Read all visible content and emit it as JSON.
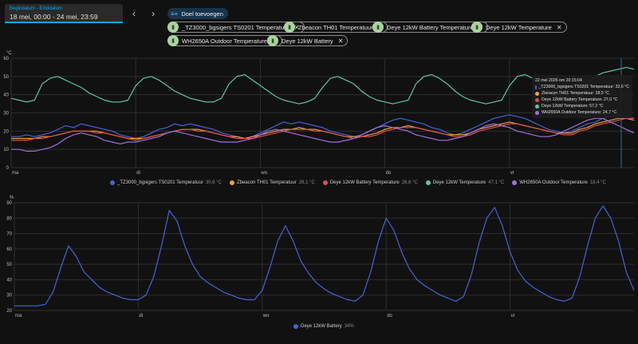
{
  "date_picker": {
    "label": "Begindatum - Einddatum",
    "value": "18 mei, 00:00 - 24 mei, 23:59"
  },
  "nav": {
    "prev_icon": "‹",
    "next_icon": "›"
  },
  "add_target": {
    "label": "Doel toevoegen"
  },
  "targets": [
    {
      "label": "_TZ3000_bgsigers TS0201 Temperatuur"
    },
    {
      "label": "Zbeacon TH01 Temperatuur"
    },
    {
      "label": "Deye 12kW Battery Temperature"
    },
    {
      "label": "Deye 12kW Temperature"
    },
    {
      "label": "WH2650A Outdoor Temperature"
    },
    {
      "label": "Deye 12kW Battery"
    }
  ],
  "chart_data": [
    {
      "type": "line",
      "unit": "°C",
      "ylim": [
        0,
        60
      ],
      "yticks": [
        "0",
        "10",
        "20",
        "30",
        "40",
        "50",
        "60"
      ],
      "xticks": [
        "ma",
        "di",
        "wo",
        "do",
        "vr"
      ],
      "grid": true,
      "legend_position": "bottom",
      "series": [
        {
          "name": "_TZ3000_bgsigers TS0201 Temperatuur",
          "value_label": "30,6 °C",
          "color": "#4a62d6",
          "values": [
            17,
            17,
            18,
            17,
            18,
            19,
            21,
            23,
            22,
            24,
            23,
            22,
            21,
            20,
            18,
            17,
            16,
            17,
            19,
            21,
            22,
            24,
            23,
            24,
            23,
            22,
            21,
            19,
            18,
            17,
            16,
            17,
            19,
            21,
            23,
            25,
            24,
            25,
            24,
            23,
            22,
            20,
            19,
            18,
            17,
            18,
            20,
            22,
            24,
            26,
            27,
            26,
            25,
            24,
            22,
            21,
            19,
            18,
            19,
            21,
            23,
            25,
            27,
            28,
            29,
            28,
            27,
            25,
            23,
            21,
            20,
            19,
            20,
            22,
            24,
            25,
            27,
            28,
            29,
            28,
            27
          ]
        },
        {
          "name": "Zbeacon TH01 Temperatuur",
          "value_label": "26,1 °C",
          "color": "#f0a040",
          "values": [
            16,
            16,
            16,
            16,
            17,
            17,
            18,
            19,
            20,
            20,
            20,
            20,
            19,
            18,
            17,
            16,
            16,
            16,
            17,
            18,
            19,
            20,
            21,
            21,
            21,
            20,
            19,
            18,
            17,
            17,
            16,
            17,
            18,
            19,
            20,
            21,
            21,
            22,
            21,
            21,
            20,
            19,
            18,
            17,
            17,
            17,
            18,
            19,
            21,
            22,
            22,
            23,
            22,
            21,
            20,
            19,
            18,
            18,
            18,
            19,
            21,
            22,
            23,
            24,
            25,
            24,
            23,
            22,
            21,
            20,
            19,
            19,
            19,
            21,
            22,
            24,
            25,
            26,
            27,
            27,
            26
          ]
        },
        {
          "name": "Deye 12kW Battery Temperature",
          "value_label": "26,6 °C",
          "color": "#e05050",
          "values": [
            15,
            15,
            15,
            16,
            16,
            17,
            18,
            19,
            20,
            20,
            20,
            19,
            19,
            18,
            17,
            16,
            15,
            16,
            17,
            18,
            19,
            20,
            21,
            21,
            20,
            20,
            19,
            18,
            17,
            16,
            16,
            16,
            17,
            18,
            19,
            20,
            21,
            21,
            21,
            20,
            20,
            19,
            18,
            17,
            16,
            17,
            17,
            18,
            20,
            21,
            22,
            22,
            22,
            21,
            20,
            19,
            18,
            17,
            17,
            18,
            20,
            21,
            22,
            23,
            24,
            24,
            23,
            22,
            21,
            20,
            19,
            18,
            18,
            20,
            21,
            23,
            24,
            25,
            26,
            27,
            27
          ]
        },
        {
          "name": "Deye 12kW Temperature",
          "value_label": "47,1 °C",
          "color": "#5cc7a8",
          "values": [
            38,
            37,
            36,
            37,
            46,
            49,
            50,
            48,
            46,
            44,
            41,
            39,
            37,
            36,
            36,
            37,
            45,
            49,
            50,
            48,
            45,
            42,
            40,
            38,
            37,
            36,
            36,
            38,
            46,
            50,
            51,
            48,
            45,
            42,
            39,
            37,
            36,
            35,
            36,
            38,
            44,
            49,
            50,
            48,
            46,
            42,
            39,
            37,
            36,
            35,
            36,
            37,
            46,
            50,
            51,
            49,
            46,
            42,
            39,
            37,
            36,
            35,
            36,
            37,
            45,
            50,
            51,
            49,
            45,
            42,
            39,
            37,
            36,
            36,
            46,
            50,
            52,
            53,
            54,
            55,
            54
          ]
        },
        {
          "name": "WH2650A Outdoor Temperature",
          "value_label": "18,4 °C",
          "color": "#a070e0",
          "values": [
            10,
            10,
            9,
            9,
            10,
            11,
            13,
            16,
            18,
            19,
            18,
            17,
            15,
            14,
            13,
            14,
            14,
            15,
            16,
            17,
            19,
            20,
            19,
            18,
            17,
            16,
            15,
            14,
            14,
            14,
            15,
            16,
            18,
            20,
            21,
            20,
            19,
            18,
            17,
            16,
            15,
            14,
            14,
            15,
            16,
            18,
            20,
            22,
            23,
            22,
            21,
            20,
            18,
            17,
            16,
            15,
            15,
            16,
            17,
            19,
            21,
            23,
            24,
            23,
            22,
            20,
            19,
            18,
            17,
            17,
            18,
            20,
            22,
            24,
            26,
            27,
            27,
            25,
            23,
            21,
            19
          ]
        }
      ]
    },
    {
      "type": "line",
      "unit": "%",
      "ylim": [
        20,
        90
      ],
      "yticks": [
        "20",
        "30",
        "40",
        "50",
        "60",
        "70",
        "80",
        "90"
      ],
      "xticks": [
        "ma",
        "di",
        "wo",
        "do",
        "vr"
      ],
      "grid": true,
      "legend_position": "bottom",
      "series": [
        {
          "name": "Deye 12kW Battery",
          "value_label": "34%",
          "color": "#4a62d6",
          "values": [
            23,
            23,
            23,
            23,
            24,
            32,
            48,
            62,
            55,
            45,
            40,
            35,
            32,
            30,
            28,
            27,
            27,
            30,
            42,
            62,
            85,
            78,
            62,
            50,
            42,
            38,
            35,
            32,
            30,
            28,
            27,
            27,
            33,
            48,
            65,
            75,
            65,
            52,
            44,
            38,
            34,
            31,
            29,
            27,
            26,
            30,
            45,
            65,
            80,
            72,
            58,
            47,
            40,
            36,
            33,
            30,
            28,
            26,
            29,
            43,
            64,
            80,
            87,
            75,
            58,
            46,
            39,
            35,
            32,
            29,
            27,
            26,
            28,
            42,
            62,
            80,
            88,
            80,
            65,
            45,
            33
          ]
        }
      ]
    }
  ],
  "tooltip": {
    "timestamp": "22 mei 2026 om 20:15:04",
    "rows": [
      {
        "text": "_TZ3000_bgsigers TS0201 Temperatuur: 32,6 °C",
        "color": "#4a62d6"
      },
      {
        "text": "Zbeacon TH01 Temperatuur: 28,3 °C",
        "color": "#f0a040"
      },
      {
        "text": "Deye 12kW Battery Temperature: 27,0 °C",
        "color": "#e05050"
      },
      {
        "text": "Deye 12kW Temperature: 57,2 °C",
        "color": "#5cc7a8"
      },
      {
        "text": "WH2650A Outdoor Temperature: 24,7 °C",
        "color": "#a070e0"
      }
    ]
  }
}
